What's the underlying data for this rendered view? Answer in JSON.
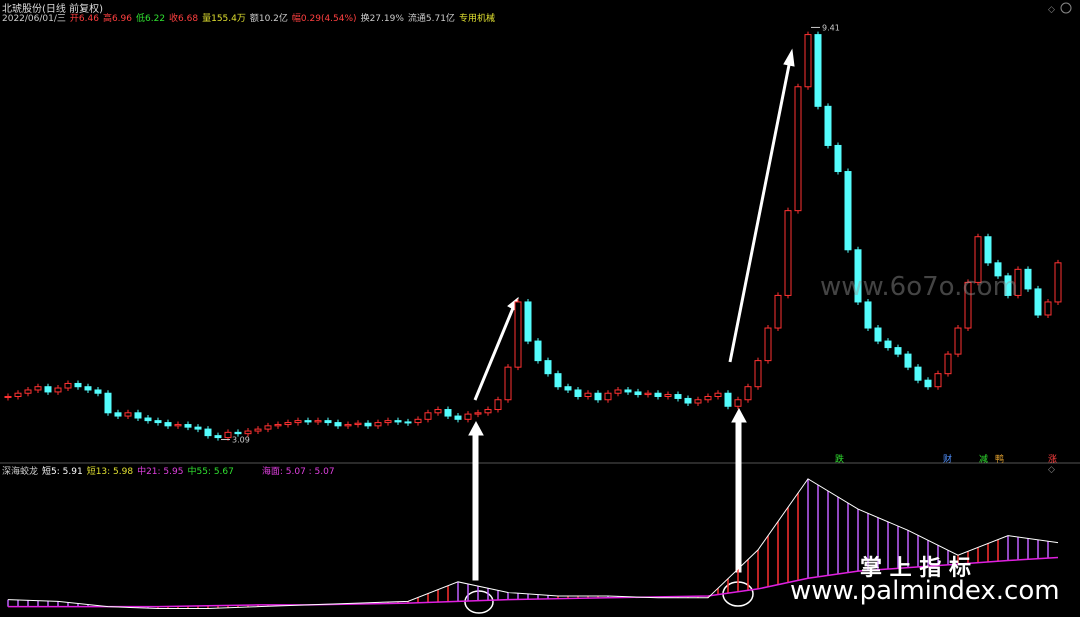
{
  "header": {
    "stock": "北琥股份(日线 前复权)",
    "date": "2022/06/01/三",
    "open": "开6.46",
    "high": "高6.96",
    "low": "低6.22",
    "close": "收6.68",
    "volume": "量155.4万",
    "amount": "额10.2亿",
    "change": "幅0.29(4.54%)",
    "turnover": "换27.19%",
    "float": "流通5.71亿",
    "industry": "专用机械"
  },
  "indicator_header": {
    "name": "深海蛟龙",
    "s5": "短5: 5.91",
    "s13": "短13: 5.98",
    "m21": "中21: 5.95",
    "m55": "中55: 5.67",
    "sea": "海面: 5.07 : 5.07"
  },
  "signals": [
    "跌",
    "财",
    "减",
    "鸭",
    "涨"
  ],
  "watermarks": [
    "www.6o7o.com",
    "掌 上 指 标",
    "www.palmindex.com"
  ],
  "chart_data": [
    {
      "type": "candlestick",
      "annotations": [
        {
          "text": "9.41",
          "value": 9.41
        },
        {
          "text": "3.09",
          "value": 3.09
        }
      ],
      "ylim": [
        2.5,
        9.8
      ],
      "values": [
        3.75,
        3.8,
        3.85,
        3.9,
        3.82,
        3.88,
        3.95,
        3.9,
        3.85,
        3.8,
        3.5,
        3.45,
        3.5,
        3.42,
        3.38,
        3.35,
        3.3,
        3.32,
        3.28,
        3.25,
        3.15,
        3.12,
        3.2,
        3.18,
        3.22,
        3.25,
        3.3,
        3.32,
        3.35,
        3.38,
        3.36,
        3.38,
        3.35,
        3.3,
        3.32,
        3.34,
        3.3,
        3.35,
        3.38,
        3.36,
        3.35,
        3.4,
        3.5,
        3.55,
        3.45,
        3.4,
        3.48,
        3.5,
        3.55,
        3.7,
        4.2,
        5.2,
        4.6,
        4.3,
        4.1,
        3.9,
        3.85,
        3.75,
        3.8,
        3.7,
        3.8,
        3.85,
        3.82,
        3.78,
        3.8,
        3.75,
        3.78,
        3.72,
        3.65,
        3.7,
        3.75,
        3.8,
        3.6,
        3.7,
        3.9,
        4.3,
        4.8,
        5.3,
        6.6,
        8.5,
        9.3,
        8.2,
        7.6,
        7.2,
        6.0,
        5.2,
        4.8,
        4.6,
        4.5,
        4.4,
        4.2,
        4.0,
        3.9,
        4.1,
        4.4,
        4.8,
        5.5,
        6.2,
        5.8,
        5.6,
        5.3,
        5.7,
        5.4,
        5.0,
        5.2,
        5.8
      ],
      "up_color": "#ff3232",
      "down_color": "#54fcfc"
    },
    {
      "type": "line",
      "ylim": [
        2,
        10
      ],
      "x": [
        0,
        5,
        10,
        15,
        20,
        25,
        30,
        35,
        40,
        45,
        50,
        55,
        60,
        65,
        70,
        75,
        80,
        85,
        90,
        95,
        100,
        105
      ],
      "series": [
        {
          "name": "海面",
          "color": "#e020e0",
          "values": [
            2.3,
            2.3,
            2.3,
            2.3,
            2.35,
            2.4,
            2.4,
            2.45,
            2.5,
            2.6,
            2.7,
            2.75,
            2.8,
            2.85,
            2.9,
            3.3,
            3.9,
            4.3,
            4.5,
            4.7,
            4.9,
            5.07
          ]
        },
        {
          "name": "短5",
          "color": "#ffffff",
          "values": [
            2.7,
            2.6,
            2.3,
            2.2,
            2.2,
            2.3,
            2.4,
            2.5,
            2.6,
            3.7,
            3.1,
            2.9,
            2.9,
            2.8,
            2.8,
            5.5,
            9.5,
            7.8,
            6.6,
            5.2,
            6.3,
            5.91
          ]
        }
      ]
    }
  ]
}
